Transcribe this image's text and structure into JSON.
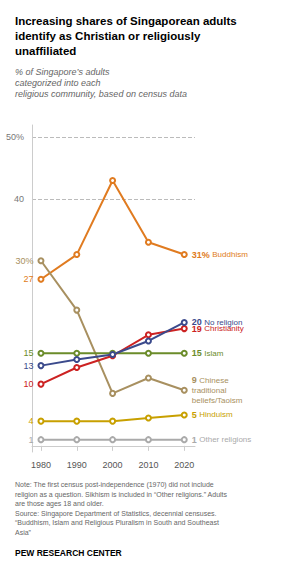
{
  "chart_data": {
    "type": "line",
    "title": "Increasing shares of Singaporean adults\nidentify as Christian or religiously\nunaffiliated",
    "subtitle": "% of Singapore’s adults\ncategorized into each\nreligious community, based on census data",
    "x": [
      1980,
      1990,
      2000,
      2010,
      2020
    ],
    "xlim": [
      1977.5,
      2023
    ],
    "xticks": [
      1980,
      1990,
      2000,
      2010,
      2020
    ],
    "ylim": [
      -1,
      52
    ],
    "yticks": [
      40,
      {
        "value": 50,
        "label": "50%"
      }
    ],
    "grid": true,
    "marker": "circle",
    "data_labels": true,
    "series": [
      {
        "name": "Buddhism",
        "color": "#E07B20",
        "values": [
          27,
          31,
          43,
          33,
          31
        ],
        "value_labels": [
          "27",
          null,
          null,
          null,
          "31%"
        ]
      },
      {
        "name": "Chinese\ntraditional\nbeliefs/Taoism",
        "color": "#A89060",
        "values": [
          30,
          22,
          8.5,
          11,
          9
        ],
        "value_labels": [
          "30%",
          null,
          null,
          null,
          "9"
        ]
      },
      {
        "name": "Islam",
        "color": "#6B8C2A",
        "values": [
          15,
          15,
          15,
          15,
          15
        ],
        "value_labels": [
          "15",
          null,
          null,
          null,
          "15"
        ]
      },
      {
        "name": "Christianity",
        "color": "#CC2222",
        "values": [
          10,
          12.7,
          14.6,
          18,
          19
        ],
        "value_labels": [
          "10",
          null,
          null,
          null,
          "19"
        ]
      },
      {
        "name": "No religion",
        "color": "#3B4A8C",
        "values": [
          13,
          14,
          14.8,
          17,
          20
        ],
        "value_labels": [
          "13",
          null,
          null,
          null,
          "20"
        ]
      },
      {
        "name": "Hinduism",
        "color": "#C8A000",
        "values": [
          4,
          4,
          4,
          4.5,
          5
        ],
        "value_labels": [
          "4",
          null,
          null,
          null,
          "5"
        ]
      },
      {
        "name": "Other religions",
        "color": "#AAAAAA",
        "values": [
          1,
          1,
          1,
          1,
          1
        ],
        "value_labels": [
          "1",
          null,
          null,
          null,
          "1"
        ]
      }
    ],
    "note": "Note: The first census post-independence (1970) did not include\nreligion as a question. Sikhism is included in “Other religions.” Adults\nare those ages 18 and older.\nSource: Singapore Department of Statistics, decennial censuses.\n“Buddhism, Islam and Religious Pluralism in South and Southeast\nAsia”",
    "footer": "PEW RESEARCH CENTER"
  }
}
